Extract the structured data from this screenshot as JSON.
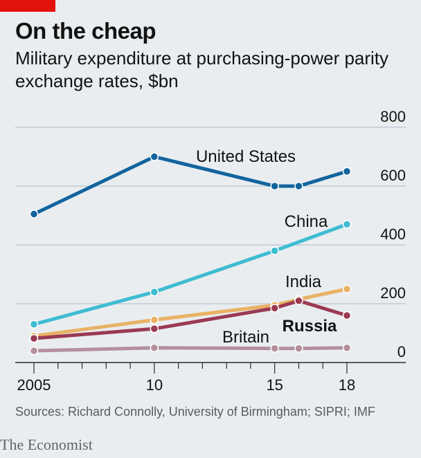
{
  "header": {
    "title": "On the cheap",
    "subtitle": "Military expenditure at purchasing-power parity exchange rates, $bn"
  },
  "footer": {
    "source": "Sources: Richard Connolly, University of Birmingham; SIPRI; IMF",
    "brand": "The Economist"
  },
  "colors": {
    "accent": "#e3120b",
    "background": "#e9edf0",
    "grid": "#b7c6cf",
    "united_states": "#12649e",
    "china": "#3ebcd2",
    "india": "#e9b264",
    "russia": "#9a3a52",
    "britain": "#b4909c"
  },
  "chart_data": {
    "type": "line",
    "title": "On the cheap",
    "ylabel": "$bn",
    "ylim": [
      0,
      800
    ],
    "yticks": [
      0,
      200,
      400,
      600,
      800
    ],
    "xlim": [
      2005,
      2018
    ],
    "xticks": [
      2005,
      2010,
      2015,
      2018
    ],
    "xtick_labels": [
      "2005",
      "10",
      "15",
      "18"
    ],
    "grid": true,
    "y_axis_position": "right",
    "legend": "inline labels",
    "series": [
      {
        "name": "United States",
        "key": "united_states",
        "bold": false,
        "x": [
          2005,
          2010,
          2015,
          2016,
          2018
        ],
        "values": [
          505,
          700,
          600,
          600,
          650
        ]
      },
      {
        "name": "China",
        "key": "china",
        "bold": false,
        "x": [
          2005,
          2010,
          2015,
          2018
        ],
        "values": [
          130,
          240,
          380,
          470
        ]
      },
      {
        "name": "India",
        "key": "india",
        "bold": false,
        "x": [
          2005,
          2010,
          2015,
          2016,
          2018
        ],
        "values": [
          90,
          145,
          195,
          215,
          250
        ]
      },
      {
        "name": "Russia",
        "key": "russia",
        "bold": true,
        "x": [
          2005,
          2010,
          2015,
          2016,
          2018
        ],
        "values": [
          82,
          115,
          185,
          210,
          160
        ]
      },
      {
        "name": "Britain",
        "key": "britain",
        "bold": false,
        "x": [
          2005,
          2010,
          2015,
          2016,
          2018
        ],
        "values": [
          40,
          50,
          48,
          48,
          50
        ]
      }
    ]
  }
}
